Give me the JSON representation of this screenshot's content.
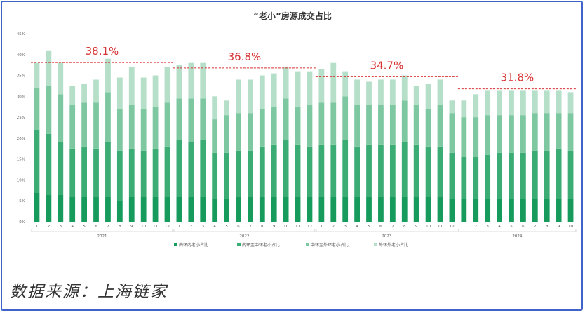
{
  "source_note": "数据来源：上海链家",
  "colors": {
    "inner": "#169b5c",
    "inner_middle": "#3aac74",
    "middle_outer": "#7dc7a1",
    "outer": "#b5dfc8",
    "highlight_text": "#d73232",
    "highlight_line": "#d73232",
    "axis_text": "#555555",
    "frame": "#3f63c8"
  },
  "chart_data": {
    "type": "bar",
    "stacked": true,
    "title": "“老小”房源成交占比",
    "ylim": [
      0,
      45
    ],
    "yticks": [
      "0%",
      "5%",
      "10%",
      "15%",
      "20%",
      "25%",
      "30%",
      "35%",
      "40%",
      "45%"
    ],
    "grid": false,
    "legend_position": "bottom",
    "years": [
      {
        "label": "2021",
        "months": [
          "1",
          "2",
          "3",
          "4",
          "5",
          "6",
          "7",
          "8",
          "9",
          "10",
          "11",
          "12"
        ]
      },
      {
        "label": "2022",
        "months": [
          "1",
          "2",
          "3",
          "4",
          "5",
          "6",
          "7",
          "8",
          "9",
          "10",
          "11",
          "12"
        ]
      },
      {
        "label": "2023",
        "months": [
          "1",
          "2",
          "3",
          "4",
          "5",
          "6",
          "7",
          "8",
          "9",
          "10",
          "11",
          "12"
        ]
      },
      {
        "label": "2024",
        "months": [
          "1",
          "2",
          "3",
          "4",
          "5",
          "6",
          "7",
          "8",
          "9",
          "10"
        ]
      }
    ],
    "series": [
      {
        "name": "内环内老小占比",
        "values": [
          7,
          6.5,
          6.5,
          6,
          6,
          6,
          6,
          5,
          6,
          6,
          6,
          6,
          6,
          6,
          6,
          5.5,
          5.5,
          6,
          6,
          6,
          6,
          6,
          6,
          6,
          6,
          6,
          6,
          6,
          6,
          6,
          6,
          6,
          6,
          6,
          6,
          5.5,
          5.5,
          5.5,
          5.5,
          5.5,
          5.5,
          5.5,
          5.5,
          5.5,
          5.5,
          5.5
        ]
      },
      {
        "name": "内环至中环老小占比",
        "values": [
          15,
          14.5,
          12.5,
          11.5,
          12,
          11.5,
          13,
          12,
          11.5,
          11,
          11.5,
          12,
          13.5,
          13,
          13.5,
          11,
          11,
          11,
          11,
          12,
          12.5,
          13.5,
          12.5,
          12,
          12.5,
          12.5,
          13.5,
          12,
          12.5,
          12.5,
          12.5,
          13,
          12.5,
          12,
          12,
          11,
          10,
          10,
          10.5,
          11,
          11,
          11,
          11.5,
          11.5,
          12,
          11.5
        ]
      },
      {
        "name": "中环至外环老小占比",
        "values": [
          10,
          11.5,
          11.5,
          10.5,
          10.5,
          11,
          12,
          10,
          10.5,
          10,
          10,
          10.5,
          10,
          10.5,
          10,
          8,
          9,
          9,
          9,
          9,
          9,
          10,
          9,
          10,
          10,
          10,
          10.5,
          10,
          9.5,
          9.5,
          9.5,
          10,
          9.5,
          9,
          10,
          9.5,
          9.5,
          9.5,
          9.5,
          9,
          9,
          9,
          9,
          9,
          8.5,
          9
        ]
      },
      {
        "name": "外环外老小占比",
        "values": [
          6,
          8.5,
          7.5,
          4.5,
          4.5,
          5.5,
          8,
          7.5,
          9,
          7.5,
          7.5,
          8.5,
          8,
          8.5,
          8.5,
          5.5,
          3.5,
          8,
          8,
          8,
          8,
          7.5,
          8.5,
          8,
          8,
          9.5,
          6,
          6,
          5.5,
          6,
          6,
          6,
          4.5,
          6,
          6,
          3,
          4,
          5.5,
          6,
          6,
          6,
          6,
          5.5,
          5.5,
          5.5,
          5
        ]
      }
    ],
    "annotations": [
      {
        "text": "38.1%",
        "value": 38.1,
        "from_index": 0,
        "to_index": 11
      },
      {
        "text": "36.8%",
        "value": 36.8,
        "from_index": 12,
        "to_index": 23
      },
      {
        "text": "34.7%",
        "value": 34.7,
        "from_index": 24,
        "to_index": 35
      },
      {
        "text": "31.8%",
        "value": 31.8,
        "from_index": 36,
        "to_index": 45
      }
    ]
  }
}
